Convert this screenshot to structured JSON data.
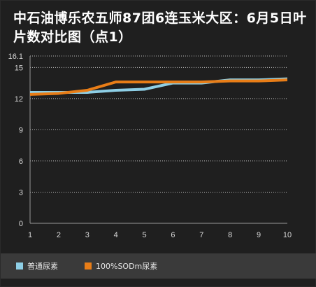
{
  "chart_data": {
    "type": "line",
    "title": "中石油博乐农五师87团6连玉米大区：6月5日叶片数对比图（点1）",
    "xlabel": "",
    "ylabel": "",
    "categories": [
      "1",
      "2",
      "3",
      "4",
      "5",
      "6",
      "7",
      "8",
      "9",
      "10"
    ],
    "y_ticks": [
      "0",
      "3",
      "6",
      "9",
      "12",
      "15",
      "16.1"
    ],
    "ylim": [
      0,
      16.1
    ],
    "grid": "horizontal-dotted",
    "legend_position": "bottom",
    "series": [
      {
        "name": "普通尿素",
        "color": "#8ecfe6",
        "values": [
          12.6,
          12.6,
          12.6,
          12.8,
          12.9,
          13.5,
          13.5,
          13.8,
          13.8,
          13.9
        ]
      },
      {
        "name": "100%SODm尿素",
        "color": "#e87d17",
        "values": [
          12.4,
          12.5,
          12.8,
          13.6,
          13.6,
          13.6,
          13.6,
          13.7,
          13.7,
          13.8
        ]
      }
    ]
  },
  "colors": {
    "background": "#1f1f1f",
    "axis": "#9a9a9a",
    "grid": "#bdbdbd",
    "legend_background": "#3a3a3a"
  }
}
